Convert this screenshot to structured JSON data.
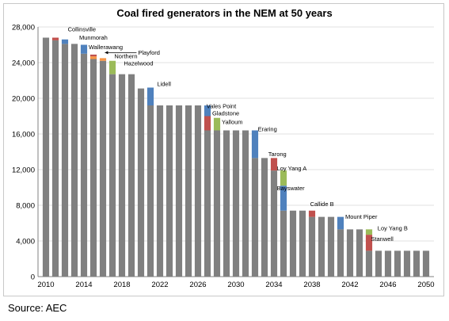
{
  "chart_data": {
    "type": "bar",
    "title": "Coal fired generators in the NEM at 50 years",
    "xlabel": "",
    "ylabel": "",
    "ylim": [
      0,
      28000
    ],
    "yticks": [
      "0",
      "4,000",
      "8,000",
      "12,000",
      "16,000",
      "20,000",
      "24,000",
      "28,000"
    ],
    "xticks": [
      "2010",
      "2014",
      "2018",
      "2022",
      "2026",
      "2030",
      "2034",
      "2038",
      "2042",
      "2046",
      "2050"
    ],
    "grid": true,
    "legend": "none",
    "colors": {
      "base": "#808080",
      "blue": "#4F81BD",
      "red": "#C0504D",
      "green": "#9BBB59",
      "orange": "#F79646"
    },
    "bars": [
      {
        "x": 2010,
        "base": 26800
      },
      {
        "x": 2011,
        "base": 26500,
        "seg": [
          {
            "v": 300,
            "c": "red"
          }
        ]
      },
      {
        "x": 2012,
        "base": 26100,
        "seg": [
          {
            "v": 500,
            "c": "blue"
          }
        ]
      },
      {
        "x": 2013,
        "base": 26100
      },
      {
        "x": 2014,
        "base": 25000,
        "seg": [
          {
            "v": 1000,
            "c": "blue"
          }
        ]
      },
      {
        "x": 2015,
        "base": 24400,
        "seg": [
          {
            "v": 300,
            "c": "orange"
          },
          {
            "v": 200,
            "c": "red"
          }
        ]
      },
      {
        "x": 2016,
        "base": 24200,
        "seg": [
          {
            "v": 300,
            "c": "orange"
          }
        ]
      },
      {
        "x": 2017,
        "base": 22700,
        "seg": [
          {
            "v": 1500,
            "c": "green"
          }
        ]
      },
      {
        "x": 2018,
        "base": 22700
      },
      {
        "x": 2019,
        "base": 22700
      },
      {
        "x": 2020,
        "base": 21100
      },
      {
        "x": 2021,
        "base": 19200,
        "seg": [
          {
            "v": 2000,
            "c": "blue"
          }
        ]
      },
      {
        "x": 2022,
        "base": 19200
      },
      {
        "x": 2023,
        "base": 19200
      },
      {
        "x": 2024,
        "base": 19200
      },
      {
        "x": 2025,
        "base": 19200
      },
      {
        "x": 2026,
        "base": 19200
      },
      {
        "x": 2027,
        "base": 16400,
        "seg": [
          {
            "v": 1600,
            "c": "red"
          },
          {
            "v": 1200,
            "c": "blue"
          }
        ]
      },
      {
        "x": 2028,
        "base": 16400,
        "seg": [
          {
            "v": 1400,
            "c": "green"
          }
        ]
      },
      {
        "x": 2029,
        "base": 16400
      },
      {
        "x": 2030,
        "base": 16400
      },
      {
        "x": 2031,
        "base": 16400
      },
      {
        "x": 2032,
        "base": 13300,
        "seg": [
          {
            "v": 3100,
            "c": "blue"
          }
        ]
      },
      {
        "x": 2033,
        "base": 13300
      },
      {
        "x": 2034,
        "base": 11900,
        "seg": [
          {
            "v": 1400,
            "c": "red"
          }
        ]
      },
      {
        "x": 2035,
        "base": 7400,
        "seg": [
          {
            "v": 2800,
            "c": "blue"
          },
          {
            "v": 1700,
            "c": "green"
          }
        ]
      },
      {
        "x": 2036,
        "base": 7400
      },
      {
        "x": 2037,
        "base": 7400
      },
      {
        "x": 2038,
        "base": 6700,
        "seg": [
          {
            "v": 700,
            "c": "red"
          }
        ]
      },
      {
        "x": 2039,
        "base": 6700
      },
      {
        "x": 2040,
        "base": 6700
      },
      {
        "x": 2041,
        "base": 5300,
        "seg": [
          {
            "v": 1400,
            "c": "blue"
          }
        ]
      },
      {
        "x": 2042,
        "base": 5300
      },
      {
        "x": 2043,
        "base": 5300
      },
      {
        "x": 2044,
        "base": 2900,
        "seg": [
          {
            "v": 1800,
            "c": "red"
          },
          {
            "v": 600,
            "c": "green"
          }
        ]
      },
      {
        "x": 2045,
        "base": 2900
      },
      {
        "x": 2046,
        "base": 2900
      },
      {
        "x": 2047,
        "base": 2900
      },
      {
        "x": 2048,
        "base": 2900
      },
      {
        "x": 2049,
        "base": 2900
      },
      {
        "x": 2050,
        "base": 2900
      }
    ],
    "annotations": [
      {
        "text": "Collinsville",
        "x": 2012.3,
        "y": 27500
      },
      {
        "text": "Munmorah",
        "x": 2013.5,
        "y": 26600
      },
      {
        "text": "Wallerawang",
        "x": 2014.5,
        "y": 25500
      },
      {
        "text": "Playford",
        "x": 2019.7,
        "y": 24900,
        "arrow_to": 2016.2
      },
      {
        "text": "Northern",
        "x": 2017.2,
        "y": 24500
      },
      {
        "text": "Hazelwood",
        "x": 2018.2,
        "y": 23700
      },
      {
        "text": "Lidell",
        "x": 2021.7,
        "y": 21400
      },
      {
        "text": "Vales Point",
        "x": 2026.9,
        "y": 18900
      },
      {
        "text": "Gladstone",
        "x": 2027.5,
        "y": 18100
      },
      {
        "text": "Yalloum",
        "x": 2028.5,
        "y": 17100
      },
      {
        "text": "Eraring",
        "x": 2032.3,
        "y": 16300
      },
      {
        "text": "Tarong",
        "x": 2033.4,
        "y": 13500
      },
      {
        "text": "Loy Yang A",
        "x": 2034.3,
        "y": 11900
      },
      {
        "text": "Bayswater",
        "x": 2034.3,
        "y": 9700
      },
      {
        "text": "Callide B",
        "x": 2037.8,
        "y": 7900
      },
      {
        "text": "Mount Piper",
        "x": 2041.5,
        "y": 6500
      },
      {
        "text": "Loy Yang B",
        "x": 2044.9,
        "y": 5200
      },
      {
        "text": "Stanwell",
        "x": 2044.2,
        "y": 4000
      }
    ]
  },
  "source": "Source: AEC"
}
